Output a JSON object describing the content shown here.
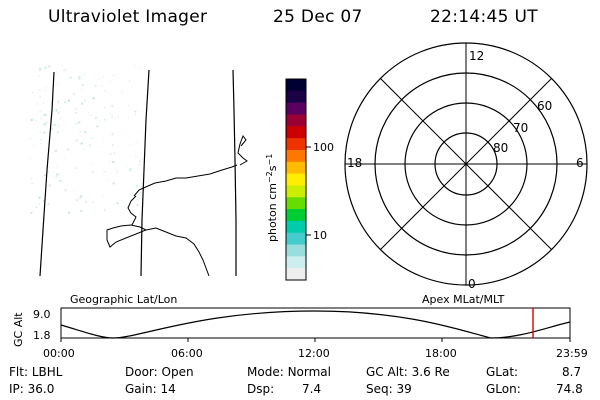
{
  "header": {
    "instrument": "Ultraviolet Imager",
    "date": "25 Dec 07",
    "time": "22:14:45 UT"
  },
  "colorbar": {
    "unit_main": "photon cm",
    "unit_exp1": "−2",
    "unit_mid": "s",
    "unit_exp2": "−1",
    "tick_100": "100",
    "tick_10": "10",
    "colors": [
      "#000033",
      "#1a0044",
      "#5a0060",
      "#990033",
      "#cc0000",
      "#ee3300",
      "#ff7700",
      "#ffbb00",
      "#ffee00",
      "#ccee00",
      "#66dd00",
      "#00cc33",
      "#00ccaa",
      "#44cccc",
      "#99dddd",
      "#cceeee",
      "#eeeeee"
    ]
  },
  "polar": {
    "label_12": "12",
    "label_18": "18",
    "label_6": "6",
    "label_0": "0",
    "label_60": "60",
    "label_70": "70",
    "label_80": "80"
  },
  "timeline": {
    "left_label": "Geographic Lat/Lon",
    "right_label": "Apex MLat/MLT",
    "axis_title": "GC Alt",
    "y_high": "9.0",
    "y_low": "1.8",
    "ticks": [
      "00:00",
      "06:00",
      "12:00",
      "18:00",
      "23:59"
    ],
    "marker_color": "#dd0000"
  },
  "info": {
    "flt_label": "Flt:",
    "flt_value": "LBHL",
    "door_label": "Door:",
    "door_value": "Open",
    "mode_label": "Mode:",
    "mode_value": "Normal",
    "gcalt_label": "GC Alt:",
    "gcalt_value": "3.6 Re",
    "glat_label": "GLat:",
    "glat_value": "8.7",
    "ip_label": "IP:",
    "ip_value": "36.0",
    "gain_label": "Gain:",
    "gain_value": "14",
    "dsp_label": "Dsp:",
    "dsp_value": "7.4",
    "seq_label": "Seq:",
    "seq_value": "39",
    "glon_label": "GLon:",
    "glon_value": "74.8"
  }
}
